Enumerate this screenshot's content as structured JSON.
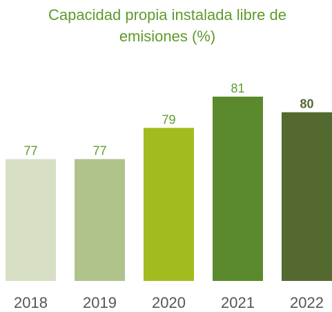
{
  "chart_data": {
    "type": "bar",
    "title": "Capacidad propia instalada libre de emisiones (%)",
    "categories": [
      "2018",
      "2019",
      "2020",
      "2021",
      "2022"
    ],
    "values": [
      77,
      77,
      79,
      81,
      80
    ],
    "colors": [
      "#d7e0c5",
      "#afc38b",
      "#a2bb1f",
      "#5a8a2c",
      "#54692f"
    ],
    "highlight_index": 4,
    "ylim": [
      69.2,
      81
    ]
  }
}
